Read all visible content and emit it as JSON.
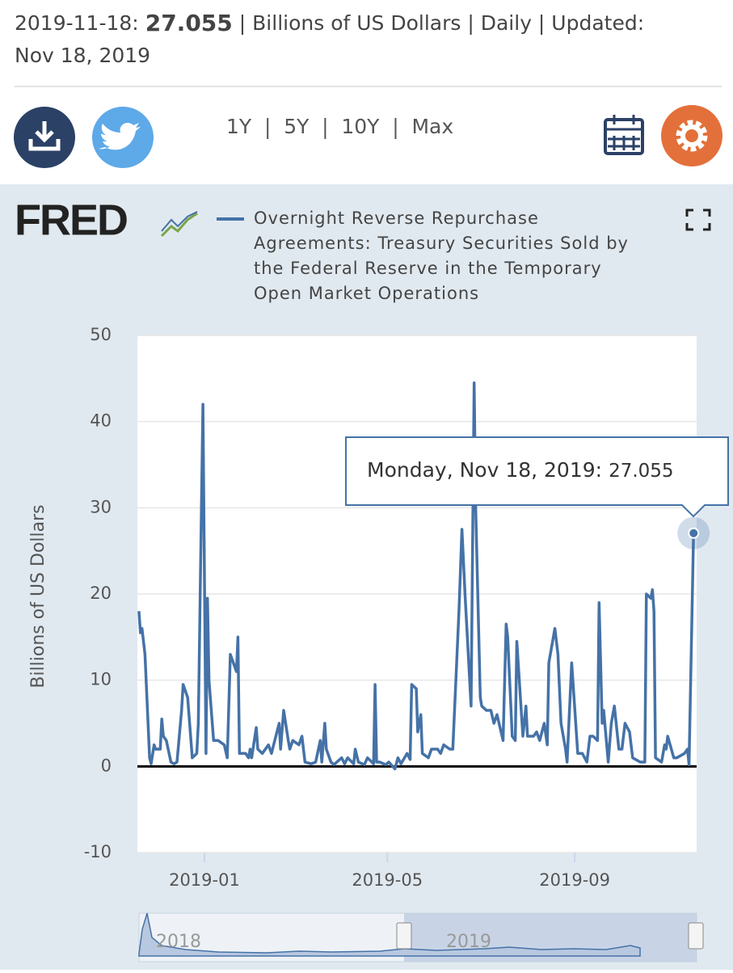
{
  "header": {
    "date": "2019-11-18:",
    "value": "27.055",
    "info": "| Billions of US Dollars | Daily | Updated:",
    "updated": "Nov 18, 2019"
  },
  "ranges": [
    "1Y",
    "5Y",
    "10Y",
    "Max"
  ],
  "logo": "FRED",
  "tooltip": {
    "date": "Monday, Nov 18, 2019:",
    "value": "27.055"
  },
  "navigator": {
    "labels": [
      "2018",
      "2019"
    ]
  },
  "chart_data": {
    "type": "line",
    "y_label": "Billions of US Dollars",
    "xlim": [
      "2018-11-18",
      "2019-11-20"
    ],
    "xticks": [
      {
        "value": "2019-01-01",
        "label": "2019-01"
      },
      {
        "value": "2019-05-01",
        "label": "2019-05"
      },
      {
        "value": "2019-09-01",
        "label": "2019-09"
      }
    ],
    "ylim": [
      -10,
      50
    ],
    "yticks": [
      -10,
      0,
      10,
      20,
      30,
      40,
      50
    ],
    "grid": true,
    "x": [
      "2018-11-19",
      "2018-11-20",
      "2018-11-21",
      "2018-11-23",
      "2018-11-26",
      "2018-11-27",
      "2018-11-29",
      "2018-11-30",
      "2018-12-03",
      "2018-12-04",
      "2018-12-05",
      "2018-12-07",
      "2018-12-10",
      "2018-12-12",
      "2018-12-14",
      "2018-12-17",
      "2018-12-18",
      "2018-12-20",
      "2018-12-21",
      "2018-12-24",
      "2018-12-27",
      "2018-12-28",
      "2018-12-31",
      "2019-01-02",
      "2019-01-03",
      "2019-01-04",
      "2019-01-07",
      "2019-01-10",
      "2019-01-14",
      "2019-01-16",
      "2019-01-18",
      "2019-01-22",
      "2019-01-23",
      "2019-01-24",
      "2019-01-28",
      "2019-01-30",
      "2019-01-31",
      "2019-02-01",
      "2019-02-04",
      "2019-02-05",
      "2019-02-08",
      "2019-02-12",
      "2019-02-14",
      "2019-02-19",
      "2019-02-20",
      "2019-02-22",
      "2019-02-25",
      "2019-02-26",
      "2019-02-28",
      "2019-03-04",
      "2019-03-06",
      "2019-03-08",
      "2019-03-12",
      "2019-03-15",
      "2019-03-18",
      "2019-03-19",
      "2019-03-21",
      "2019-03-22",
      "2019-03-25",
      "2019-03-27",
      "2019-04-01",
      "2019-04-03",
      "2019-04-05",
      "2019-04-09",
      "2019-04-10",
      "2019-04-12",
      "2019-04-16",
      "2019-04-18",
      "2019-04-22",
      "2019-04-23",
      "2019-04-24",
      "2019-04-26",
      "2019-04-30",
      "2019-05-02",
      "2019-05-06",
      "2019-05-08",
      "2019-05-10",
      "2019-05-14",
      "2019-05-16",
      "2019-05-17",
      "2019-05-20",
      "2019-05-21",
      "2019-05-23",
      "2019-05-24",
      "2019-05-28",
      "2019-05-30",
      "2019-06-03",
      "2019-06-05",
      "2019-06-07",
      "2019-06-11",
      "2019-06-13",
      "2019-06-17",
      "2019-06-19",
      "2019-06-21",
      "2019-06-25",
      "2019-06-27",
      "2019-06-28",
      "2019-07-01",
      "2019-07-02",
      "2019-07-05",
      "2019-07-08",
      "2019-07-10",
      "2019-07-12",
      "2019-07-16",
      "2019-07-18",
      "2019-07-19",
      "2019-07-22",
      "2019-07-24",
      "2019-07-25",
      "2019-07-29",
      "2019-07-31",
      "2019-08-01",
      "2019-08-05",
      "2019-08-07",
      "2019-08-09",
      "2019-08-12",
      "2019-08-14",
      "2019-08-15",
      "2019-08-19",
      "2019-08-21",
      "2019-08-23",
      "2019-08-26",
      "2019-08-27",
      "2019-08-30",
      "2019-09-03",
      "2019-09-06",
      "2019-09-09",
      "2019-09-11",
      "2019-09-13",
      "2019-09-16",
      "2019-09-17",
      "2019-09-19",
      "2019-09-20",
      "2019-09-23",
      "2019-09-25",
      "2019-09-27",
      "2019-09-30",
      "2019-10-02",
      "2019-10-04",
      "2019-10-07",
      "2019-10-09",
      "2019-10-14",
      "2019-10-17",
      "2019-10-18",
      "2019-10-21",
      "2019-10-22",
      "2019-10-23",
      "2019-10-24",
      "2019-10-28",
      "2019-10-30",
      "2019-10-31",
      "2019-11-01",
      "2019-11-05",
      "2019-11-07",
      "2019-11-12",
      "2019-11-14",
      "2019-11-15",
      "2019-11-18"
    ],
    "series": [
      {
        "name": "Overnight Reverse Repurchase Agreements: Treasury Securities Sold by the Federal Reserve in the Temporary Open Market Operations",
        "color": "#4572a7",
        "values": [
          18,
          15.5,
          16,
          13,
          1,
          0.3,
          2.5,
          2,
          2,
          5.5,
          3.5,
          3,
          0.5,
          0.3,
          0.5,
          6.5,
          9.5,
          8.5,
          8,
          1,
          1.5,
          5,
          42,
          1.5,
          19.5,
          10,
          3,
          3,
          2.5,
          1,
          13,
          11,
          15,
          1.5,
          1.5,
          1,
          2,
          1,
          4.5,
          2,
          1.5,
          2.5,
          1.5,
          5,
          2,
          6.5,
          3,
          2,
          3,
          2.5,
          3.5,
          0.5,
          0.3,
          0.5,
          3,
          0.5,
          5,
          2,
          0.5,
          0.2,
          1,
          0.3,
          1,
          0.3,
          2,
          0.5,
          0.2,
          1,
          0.3,
          9.5,
          0.5,
          0.5,
          0.2,
          0.5,
          -0.3,
          1,
          0.3,
          1.5,
          0.8,
          9.5,
          9,
          4,
          6,
          1.5,
          1,
          2,
          2,
          1.5,
          2.5,
          2,
          2,
          18,
          27.5,
          20,
          7,
          44.5,
          30,
          8,
          7,
          6.5,
          6.5,
          5,
          6,
          3,
          16.5,
          15,
          3.5,
          3,
          14.5,
          3.5,
          7,
          3.5,
          3.5,
          4,
          3,
          5,
          2.5,
          12,
          16,
          13,
          5,
          2,
          0.5,
          12,
          1.5,
          1.5,
          0.5,
          3.5,
          3.5,
          3,
          19,
          5,
          6.5,
          0.5,
          5,
          7,
          2,
          2,
          5,
          4,
          1,
          0.5,
          0.5,
          20,
          19.5,
          20.5,
          18,
          1,
          0.5,
          2.5,
          2,
          3.5,
          1,
          1,
          1.5,
          2,
          0.2,
          27.055
        ]
      }
    ]
  }
}
